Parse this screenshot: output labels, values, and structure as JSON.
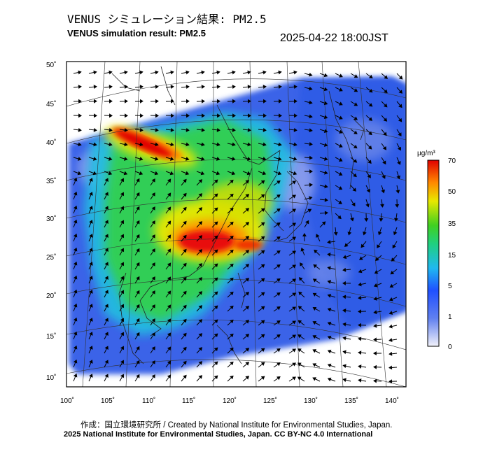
{
  "header": {
    "title_ja": "VENUS シミュレーション結果: PM2.5",
    "title_en": "VENUS simulation result: PM2.5",
    "timestamp": "2025-04-22 18:00JST"
  },
  "map": {
    "lon_ticks": [
      "100˚",
      "105˚",
      "110˚",
      "115˚",
      "120˚",
      "125˚",
      "130˚",
      "135˚",
      "140˚"
    ],
    "lat_ticks": [
      "50˚",
      "45˚",
      "40˚",
      "35˚",
      "30˚",
      "25˚",
      "20˚",
      "15˚",
      "10˚"
    ]
  },
  "colorbar": {
    "unit": "µg/m³",
    "labels": [
      "70",
      "50",
      "35",
      "15",
      "5",
      "1",
      "0"
    ],
    "colors": [
      "#e8e8f8",
      "#2060ff",
      "#20c8f0",
      "#30d040",
      "#f0f000",
      "#ff8000",
      "#e00000"
    ]
  },
  "footer": {
    "credit_ja": "作成：国立環境研究所 / Created by National Institute for Environmental Studies, Japan.",
    "copyright": "2025 National Institute for Environmental Studies, Japan. CC BY-NC 4.0 International"
  }
}
